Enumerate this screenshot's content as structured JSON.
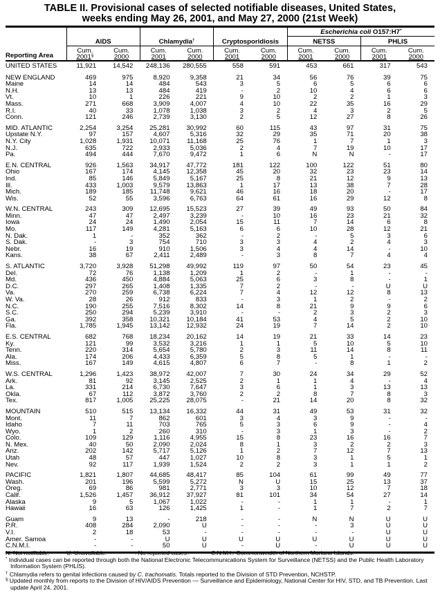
{
  "title_line1": "TABLE II. Provisional cases of selected notifiable diseases, United States,",
  "title_line2": "weeks ending May 26, 2001, and May 27, 2000 (21st Week)",
  "header": {
    "ecoli": "Escherichia coli",
    "ecoli_suffix": "O157:H7",
    "ecoli_mark": "*",
    "aids": "AIDS",
    "chlamydia": "Chlamydia",
    "chlamydia_mark": "†",
    "crypto": "Cryptosporidiosis",
    "netss": "NETSS",
    "phlis": "PHLIS",
    "reporting_area": "Reporting Area",
    "cum": "Cum.",
    "y2001": "2001",
    "y2000": "2000",
    "aids_2001_mark": "§"
  },
  "groups": [
    {
      "rows": [
        [
          "UNITED STATES",
          "11,921",
          "14,542",
          "248,136",
          "280,555",
          "558",
          "591",
          "453",
          "661",
          "317",
          "543"
        ]
      ]
    },
    {
      "rows": [
        [
          "NEW ENGLAND",
          "469",
          "975",
          "8,920",
          "9,358",
          "21",
          "34",
          "56",
          "76",
          "39",
          "75"
        ],
        [
          "Maine",
          "14",
          "14",
          "484",
          "543",
          "3",
          "5",
          "6",
          "5",
          "6",
          "6"
        ],
        [
          "N.H.",
          "13",
          "13",
          "484",
          "419",
          "-",
          "2",
          "10",
          "4",
          "6",
          "6"
        ],
        [
          "Vt.",
          "10",
          "1",
          "226",
          "221",
          "9",
          "10",
          "2",
          "2",
          "1",
          "3"
        ],
        [
          "Mass.",
          "271",
          "668",
          "3,909",
          "4,007",
          "4",
          "10",
          "22",
          "35",
          "16",
          "29"
        ],
        [
          "R.I.",
          "40",
          "33",
          "1,078",
          "1,038",
          "3",
          "2",
          "4",
          "3",
          "2",
          "5"
        ],
        [
          "Conn.",
          "121",
          "246",
          "2,739",
          "3,130",
          "2",
          "5",
          "12",
          "27",
          "8",
          "26"
        ]
      ]
    },
    {
      "rows": [
        [
          "MID. ATLANTIC",
          "2,254",
          "3,254",
          "25,281",
          "30,992",
          "60",
          "115",
          "43",
          "97",
          "31",
          "75"
        ],
        [
          "Upstate N.Y.",
          "97",
          "157",
          "4,607",
          "5,316",
          "32",
          "29",
          "35",
          "71",
          "20",
          "38"
        ],
        [
          "N.Y. City",
          "1,028",
          "1,931",
          "10,071",
          "11,168",
          "25",
          "76",
          "1",
          "7",
          "1",
          "3"
        ],
        [
          "N.J.",
          "635",
          "722",
          "2,933",
          "5,036",
          "2",
          "4",
          "7",
          "19",
          "10",
          "17"
        ],
        [
          "Pa.",
          "494",
          "444",
          "7,670",
          "9,472",
          "1",
          "6",
          "N",
          "N",
          "-",
          "17"
        ]
      ]
    },
    {
      "rows": [
        [
          "E.N. CENTRAL",
          "926",
          "1,563",
          "34,917",
          "47,772",
          "181",
          "122",
          "100",
          "122",
          "51",
          "80"
        ],
        [
          "Ohio",
          "167",
          "174",
          "4,145",
          "12,358",
          "45",
          "20",
          "32",
          "23",
          "23",
          "14"
        ],
        [
          "Ind.",
          "85",
          "146",
          "5,849",
          "5,167",
          "25",
          "8",
          "21",
          "12",
          "9",
          "13"
        ],
        [
          "Ill.",
          "433",
          "1,003",
          "9,579",
          "13,863",
          "1",
          "17",
          "13",
          "38",
          "7",
          "28"
        ],
        [
          "Mich.",
          "189",
          "185",
          "11,748",
          "9,621",
          "46",
          "16",
          "18",
          "20",
          "-",
          "17"
        ],
        [
          "Wis.",
          "52",
          "55",
          "3,596",
          "6,763",
          "64",
          "61",
          "16",
          "29",
          "12",
          "8"
        ]
      ]
    },
    {
      "rows": [
        [
          "W.N. CENTRAL",
          "243",
          "309",
          "12,695",
          "15,523",
          "27",
          "39",
          "49",
          "93",
          "50",
          "84"
        ],
        [
          "Minn.",
          "47",
          "47",
          "2,497",
          "3,239",
          "-",
          "10",
          "16",
          "23",
          "21",
          "32"
        ],
        [
          "Iowa",
          "24",
          "24",
          "1,490",
          "2,054",
          "15",
          "11",
          "7",
          "14",
          "6",
          "8"
        ],
        [
          "Mo.",
          "117",
          "149",
          "4,281",
          "5,163",
          "6",
          "6",
          "10",
          "28",
          "12",
          "21"
        ],
        [
          "N. Dak.",
          "1",
          "-",
          "352",
          "362",
          "-",
          "2",
          "-",
          "5",
          "3",
          "6"
        ],
        [
          "S. Dak.",
          "-",
          "3",
          "754",
          "710",
          "3",
          "3",
          "4",
          "2",
          "4",
          "3"
        ],
        [
          "Nebr.",
          "16",
          "19",
          "910",
          "1,506",
          "3",
          "4",
          "4",
          "14",
          "-",
          "10"
        ],
        [
          "Kans.",
          "38",
          "67",
          "2,411",
          "2,489",
          "-",
          "3",
          "8",
          "7",
          "4",
          "4"
        ]
      ]
    },
    {
      "rows": [
        [
          "S. ATLANTIC",
          "3,720",
          "3,928",
          "51,298",
          "49,992",
          "119",
          "97",
          "50",
          "54",
          "23",
          "45"
        ],
        [
          "Del.",
          "72",
          "76",
          "1,138",
          "1,209",
          "1",
          "2",
          "-",
          "1",
          "-",
          "-"
        ],
        [
          "Md.",
          "436",
          "450",
          "4,884",
          "5,063",
          "25",
          "6",
          "3",
          "8",
          "-",
          "1"
        ],
        [
          "D.C.",
          "297",
          "265",
          "1,408",
          "1,335",
          "7",
          "2",
          "-",
          "-",
          "U",
          "U"
        ],
        [
          "Va.",
          "270",
          "259",
          "6,738",
          "6,224",
          "7",
          "4",
          "12",
          "12",
          "8",
          "13"
        ],
        [
          "W. Va.",
          "28",
          "26",
          "912",
          "833",
          "-",
          "3",
          "1",
          "2",
          "-",
          "2"
        ],
        [
          "N.C.",
          "190",
          "255",
          "7,516",
          "8,302",
          "14",
          "8",
          "21",
          "9",
          "9",
          "6"
        ],
        [
          "S.C.",
          "250",
          "294",
          "5,239",
          "3,910",
          "-",
          "-",
          "2",
          "3",
          "2",
          "3"
        ],
        [
          "Ga.",
          "392",
          "358",
          "10,321",
          "10,184",
          "41",
          "53",
          "4",
          "5",
          "2",
          "10"
        ],
        [
          "Fla.",
          "1,785",
          "1,945",
          "13,142",
          "12,932",
          "24",
          "19",
          "7",
          "14",
          "2",
          "10"
        ]
      ]
    },
    {
      "rows": [
        [
          "E.S. CENTRAL",
          "682",
          "768",
          "18,234",
          "20,162",
          "14",
          "19",
          "21",
          "33",
          "14",
          "23"
        ],
        [
          "Ky.",
          "121",
          "99",
          "3,532",
          "3,216",
          "1",
          "1",
          "5",
          "10",
          "5",
          "10"
        ],
        [
          "Tenn.",
          "220",
          "314",
          "5,654",
          "5,780",
          "2",
          "3",
          "11",
          "14",
          "8",
          "11"
        ],
        [
          "Ala.",
          "174",
          "206",
          "4,433",
          "6,359",
          "5",
          "8",
          "5",
          "1",
          "-",
          "-"
        ],
        [
          "Miss.",
          "167",
          "149",
          "4,615",
          "4,807",
          "6",
          "7",
          "-",
          "8",
          "1",
          "2"
        ]
      ]
    },
    {
      "rows": [
        [
          "W.S. CENTRAL",
          "1,296",
          "1,423",
          "38,972",
          "42,007",
          "7",
          "30",
          "24",
          "34",
          "29",
          "52"
        ],
        [
          "Ark.",
          "81",
          "92",
          "3,145",
          "2,525",
          "2",
          "1",
          "1",
          "4",
          "-",
          "4"
        ],
        [
          "La.",
          "331",
          "214",
          "6,730",
          "7,647",
          "3",
          "6",
          "1",
          "3",
          "13",
          "13"
        ],
        [
          "Okla.",
          "67",
          "112",
          "3,872",
          "3,760",
          "2",
          "2",
          "8",
          "7",
          "8",
          "3"
        ],
        [
          "Tex.",
          "817",
          "1,005",
          "25,225",
          "28,075",
          "-",
          "21",
          "14",
          "20",
          "8",
          "32"
        ]
      ]
    },
    {
      "rows": [
        [
          "MOUNTAIN",
          "510",
          "515",
          "13,134",
          "16,332",
          "44",
          "31",
          "49",
          "53",
          "31",
          "32"
        ],
        [
          "Mont.",
          "11",
          "7",
          "862",
          "601",
          "3",
          "4",
          "3",
          "9",
          "-",
          "-"
        ],
        [
          "Idaho",
          "7",
          "11",
          "703",
          "765",
          "5",
          "3",
          "6",
          "9",
          "-",
          "4"
        ],
        [
          "Wyo.",
          "1",
          "2",
          "260",
          "310",
          "-",
          "3",
          "1",
          "3",
          "-",
          "2"
        ],
        [
          "Colo.",
          "109",
          "129",
          "1,116",
          "4,955",
          "15",
          "8",
          "23",
          "16",
          "16",
          "7"
        ],
        [
          "N. Mex.",
          "40",
          "50",
          "2,090",
          "2,024",
          "8",
          "1",
          "3",
          "2",
          "2",
          "3"
        ],
        [
          "Ariz.",
          "202",
          "142",
          "5,717",
          "5,126",
          "1",
          "2",
          "7",
          "12",
          "7",
          "13"
        ],
        [
          "Utah",
          "48",
          "57",
          "447",
          "1,027",
          "10",
          "8",
          "3",
          "1",
          "5",
          "1"
        ],
        [
          "Nev.",
          "92",
          "117",
          "1,939",
          "1,524",
          "2",
          "2",
          "3",
          "1",
          "1",
          "2"
        ]
      ]
    },
    {
      "rows": [
        [
          "PACIFIC",
          "1,821",
          "1,807",
          "44,685",
          "48,417",
          "85",
          "104",
          "61",
          "99",
          "49",
          "77"
        ],
        [
          "Wash.",
          "201",
          "196",
          "5,599",
          "5,272",
          "N",
          "U",
          "15",
          "25",
          "13",
          "37"
        ],
        [
          "Oreg.",
          "69",
          "86",
          "981",
          "2,771",
          "3",
          "3",
          "10",
          "12",
          "7",
          "18"
        ],
        [
          "Calif.",
          "1,526",
          "1,457",
          "36,912",
          "37,927",
          "81",
          "101",
          "34",
          "54",
          "27",
          "14"
        ],
        [
          "Alaska",
          "9",
          "5",
          "1,067",
          "1,022",
          "-",
          "-",
          "1",
          "1",
          "-",
          "1"
        ],
        [
          "Hawaii",
          "16",
          "63",
          "126",
          "1,425",
          "1",
          "-",
          "1",
          "7",
          "2",
          "7"
        ]
      ]
    },
    {
      "rows": [
        [
          "Guam",
          "9",
          "13",
          "-",
          "218",
          "-",
          "-",
          "N",
          "N",
          "U",
          "U"
        ],
        [
          "P.R.",
          "408",
          "284",
          "2,090",
          "U",
          "-",
          "-",
          "-",
          "3",
          "U",
          "U"
        ],
        [
          "V.I.",
          "2",
          "18",
          "53",
          "-",
          "-",
          "-",
          "-",
          "-",
          "U",
          "U"
        ],
        [
          "Amer. Samoa",
          "-",
          "-",
          "U",
          "U",
          "U",
          "U",
          "U",
          "U",
          "U",
          "U"
        ],
        [
          "C.N.M.I.",
          "-",
          "-",
          "50",
          "U",
          "-",
          "U",
          "-",
          "U",
          "U",
          "U"
        ]
      ]
    }
  ],
  "footer": {
    "legend": [
      "N: Not notifiable.",
      "U: Unavailable.",
      "-: No reported cases.",
      "C.N.M.I.: Commonwealth of Northern Mariana Islands."
    ],
    "note_star_mark": "*",
    "note_star": "Individual cases can be reported through both the National Electronic Telecommunications System for Surveillance (NETSS) and the Public Health Laboratory Information System (PHLIS).",
    "note_dagger_mark": "†",
    "note_dagger_pre": "Chlamydia refers to genital infections caused by",
    "note_dagger_italic": "C. trachomatis.",
    "note_dagger_post": "Totals reported to the Division of STD Prevention, NCHSTP.",
    "note_section_mark": "§",
    "note_section": "Updated monthly from reports to the Division of HIV/AIDS Prevention — Surveillance and Epidemiology, National Center for HIV, STD, and TB Prevention. Last update April 24, 2001."
  }
}
